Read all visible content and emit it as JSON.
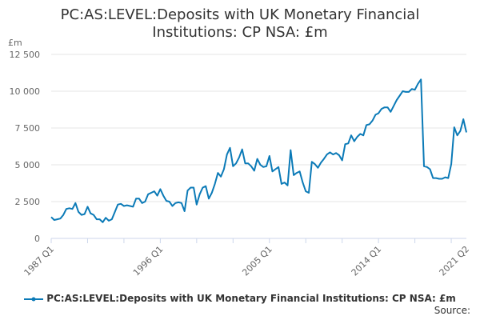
{
  "chart_data": {
    "type": "line",
    "title_lines": [
      "PC:AS:LEVEL:Deposits with UK Monetary Financial",
      "Institutions: CP NSA: £m"
    ],
    "ylabel": "£m",
    "ylim": [
      0,
      12500
    ],
    "yticks": [
      0,
      2500,
      5000,
      7500,
      10000,
      12500
    ],
    "ytick_labels": [
      "0",
      "2 500",
      "5 000",
      "7 500",
      "10 000",
      "12 500"
    ],
    "xtick_labels": [
      "1987 Q1",
      "1996 Q1",
      "2005 Q1",
      "2014 Q1",
      "2021 Q2"
    ],
    "xtick_values": [
      1987.0,
      1996.0,
      2005.0,
      2014.0,
      2021.25
    ],
    "xlim": [
      1987.0,
      2021.25
    ],
    "grid": true,
    "legend_position": "bottom",
    "series": [
      {
        "name": "PC:AS:LEVEL:Deposits with UK Monetary Financial Institutions: CP NSA: £m",
        "color": "#0b7ab7",
        "x": [
          1987.0,
          1987.25,
          1987.5,
          1987.75,
          1988.0,
          1988.25,
          1988.5,
          1988.75,
          1989.0,
          1989.25,
          1989.5,
          1989.75,
          1990.0,
          1990.25,
          1990.5,
          1990.75,
          1991.0,
          1991.25,
          1991.5,
          1991.75,
          1992.0,
          1992.25,
          1992.5,
          1992.75,
          1993.0,
          1993.25,
          1993.5,
          1993.75,
          1994.0,
          1994.25,
          1994.5,
          1994.75,
          1995.0,
          1995.25,
          1995.5,
          1995.75,
          1996.0,
          1996.25,
          1996.5,
          1996.75,
          1997.0,
          1997.25,
          1997.5,
          1997.75,
          1998.0,
          1998.25,
          1998.5,
          1998.75,
          1999.0,
          1999.25,
          1999.5,
          1999.75,
          2000.0,
          2000.25,
          2000.5,
          2000.75,
          2001.0,
          2001.25,
          2001.5,
          2001.75,
          2002.0,
          2002.25,
          2002.5,
          2002.75,
          2003.0,
          2003.25,
          2003.5,
          2003.75,
          2004.0,
          2004.25,
          2004.5,
          2004.75,
          2005.0,
          2005.25,
          2005.5,
          2005.75,
          2006.0,
          2006.25,
          2006.5,
          2006.75,
          2007.0,
          2007.25,
          2007.5,
          2007.75,
          2008.0,
          2008.25,
          2008.5,
          2008.75,
          2009.0,
          2009.25,
          2009.5,
          2009.75,
          2010.0,
          2010.25,
          2010.5,
          2010.75,
          2011.0,
          2011.25,
          2011.5,
          2011.75,
          2012.0,
          2012.25,
          2012.5,
          2012.75,
          2013.0,
          2013.25,
          2013.5,
          2013.75,
          2014.0,
          2014.25,
          2014.5,
          2014.75,
          2015.0,
          2015.25,
          2015.5,
          2015.75,
          2016.0,
          2016.25,
          2016.5,
          2016.75,
          2017.0,
          2017.25,
          2017.5,
          2017.75,
          2018.0,
          2018.25,
          2018.5,
          2018.75,
          2019.0,
          2019.25,
          2019.5,
          2019.75,
          2020.0,
          2020.25,
          2020.5,
          2020.75,
          2021.0,
          2021.25
        ],
        "values": [
          1450,
          1250,
          1300,
          1350,
          1600,
          2000,
          2050,
          2000,
          2400,
          1800,
          1600,
          1650,
          2150,
          1700,
          1600,
          1300,
          1300,
          1100,
          1400,
          1200,
          1300,
          1800,
          2300,
          2350,
          2200,
          2250,
          2200,
          2150,
          2700,
          2700,
          2400,
          2500,
          3000,
          3100,
          3200,
          2900,
          3350,
          2900,
          2550,
          2500,
          2200,
          2400,
          2450,
          2400,
          1850,
          3250,
          3450,
          3450,
          2300,
          3000,
          3450,
          3550,
          2700,
          3100,
          3700,
          4450,
          4200,
          4700,
          5700,
          6150,
          4900,
          5100,
          5500,
          6050,
          5100,
          5100,
          4900,
          4600,
          5400,
          5000,
          4850,
          4900,
          5600,
          4550,
          4700,
          4850,
          3700,
          3800,
          3600,
          6000,
          4300,
          4450,
          4550,
          3800,
          3200,
          3100,
          5200,
          5050,
          4800,
          5150,
          5400,
          5700,
          5850,
          5700,
          5800,
          5650,
          5300,
          6400,
          6450,
          7000,
          6600,
          6900,
          7100,
          7000,
          7700,
          7750,
          8000,
          8400,
          8500,
          8800,
          8900,
          8900,
          8600,
          9000,
          9400,
          9700,
          10000,
          9950,
          9950,
          10150,
          10100,
          10500,
          10800,
          4900,
          4850,
          4700,
          4100,
          4100,
          4050,
          4050,
          4150,
          4100,
          5050,
          7550,
          7000,
          7300,
          8100,
          7200
        ]
      }
    ]
  },
  "source_label": "Source:"
}
